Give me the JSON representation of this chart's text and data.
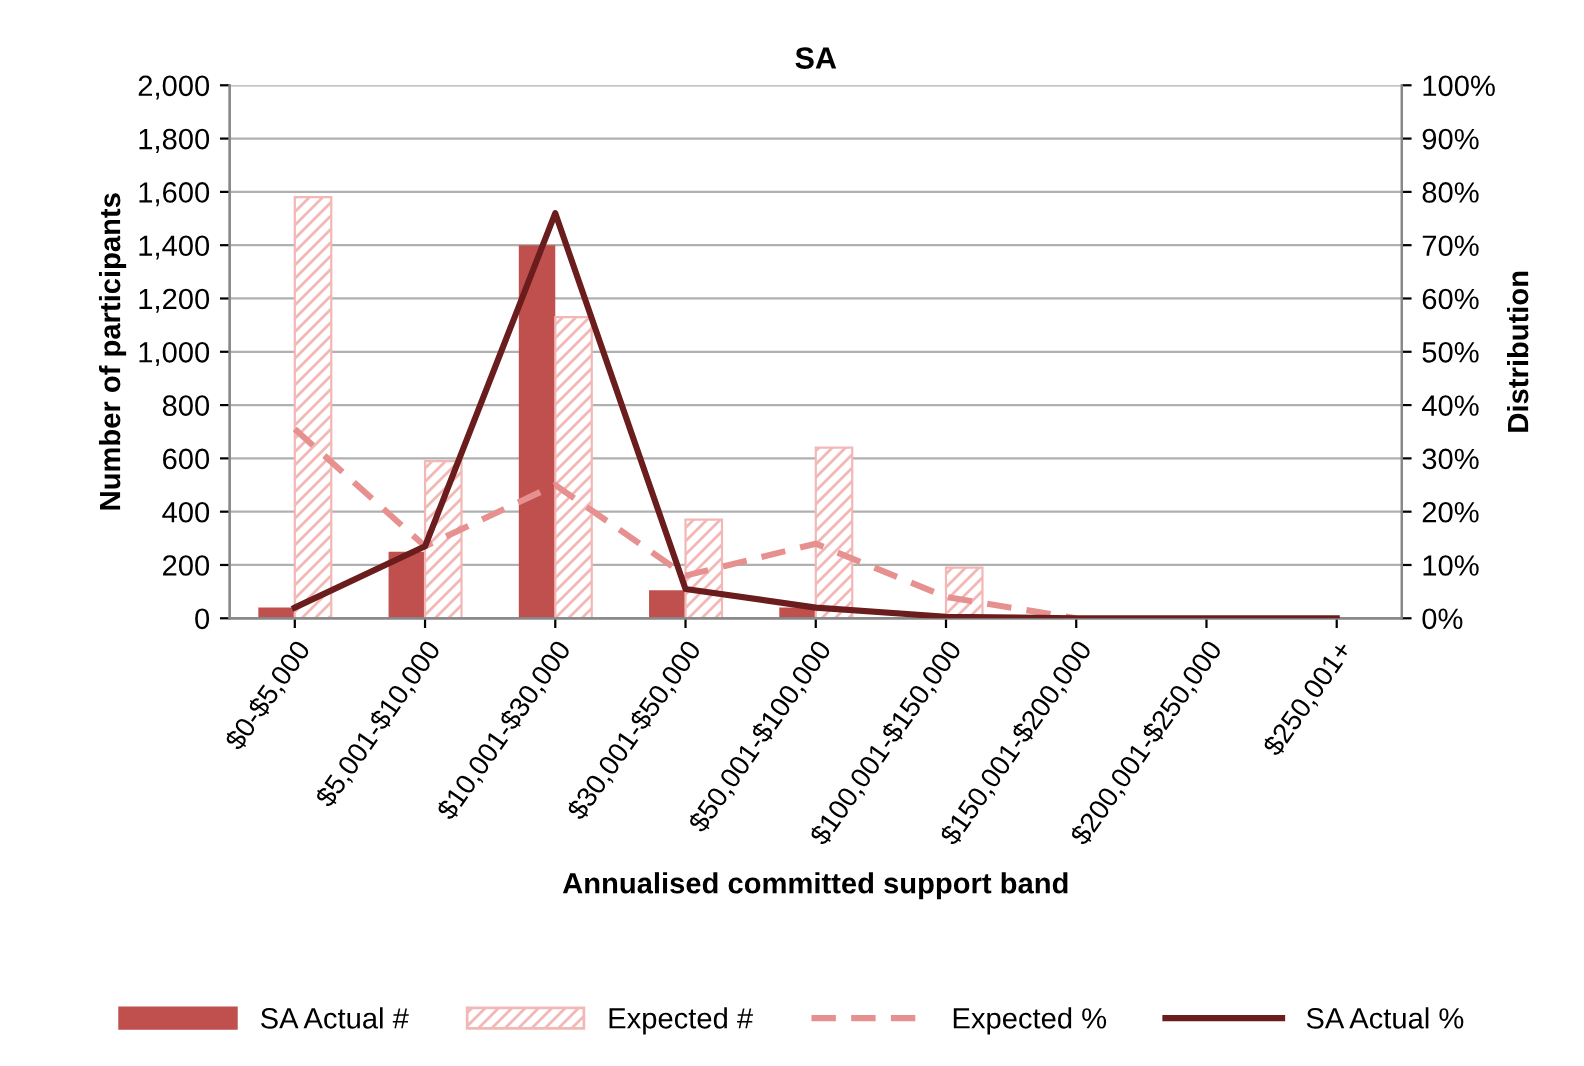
{
  "chart_data": {
    "type": "bar",
    "title": "SA",
    "xlabel": "Annualised committed support band",
    "ylabel": "Number of participants",
    "y2label": "Distribution",
    "categories": [
      "$0-$5,000",
      "$5,001-$10,000",
      "$10,001-$30,000",
      "$30,001-$50,000",
      "$50,001-$100,000",
      "$100,001-$150,000",
      "$150,001-$200,000",
      "$200,001-$250,000",
      "$250,001+"
    ],
    "series": [
      {
        "name": "SA Actual #",
        "color": "#c0504d",
        "values": [
          40,
          250,
          1400,
          105,
          40,
          null,
          0,
          0,
          0
        ]
      },
      {
        "name": "Expected #",
        "color": "#f2b8b6",
        "values": [
          1580,
          590,
          1130,
          370,
          640,
          190,
          0,
          0,
          0
        ]
      },
      {
        "name": "Expected %",
        "type": "line",
        "axis": "y2",
        "color": "#e6918f",
        "line_style": "dashed",
        "values": [
          35.5,
          13.5,
          25,
          8,
          14,
          4,
          0,
          null,
          null
        ]
      },
      {
        "name": "SA Actual %",
        "type": "line",
        "axis": "y2",
        "color": "#6b1c1c",
        "line_style": "solid",
        "values": [
          2,
          13.5,
          76,
          5.5,
          2,
          0.3,
          0,
          0,
          0
        ]
      }
    ],
    "ylim": [
      0,
      2000
    ],
    "yticks": [
      {
        "value": 0,
        "label": "0"
      },
      {
        "value": 200,
        "label": "200"
      },
      {
        "value": 400,
        "label": "400"
      },
      {
        "value": 600,
        "label": "600"
      },
      {
        "value": 800,
        "label": "800"
      },
      {
        "value": 1000,
        "label": "1,000"
      },
      {
        "value": 1200,
        "label": "1,200"
      },
      {
        "value": 1400,
        "label": "1,400"
      },
      {
        "value": 1600,
        "label": "1,600"
      },
      {
        "value": 1800,
        "label": "1,800"
      },
      {
        "value": 2000,
        "label": "2,000"
      }
    ],
    "y2lim": [
      0,
      100
    ],
    "y2ticks": [
      {
        "value": 0,
        "label": "0%"
      },
      {
        "value": 10,
        "label": "10%"
      },
      {
        "value": 20,
        "label": "20%"
      },
      {
        "value": 30,
        "label": "30%"
      },
      {
        "value": 40,
        "label": "40%"
      },
      {
        "value": 50,
        "label": "50%"
      },
      {
        "value": 60,
        "label": "60%"
      },
      {
        "value": 70,
        "label": "70%"
      },
      {
        "value": 80,
        "label": "80%"
      },
      {
        "value": 90,
        "label": "90%"
      },
      {
        "value": 100,
        "label": "100%"
      }
    ],
    "grid": "y",
    "legend": "bottom",
    "marker": "none"
  }
}
